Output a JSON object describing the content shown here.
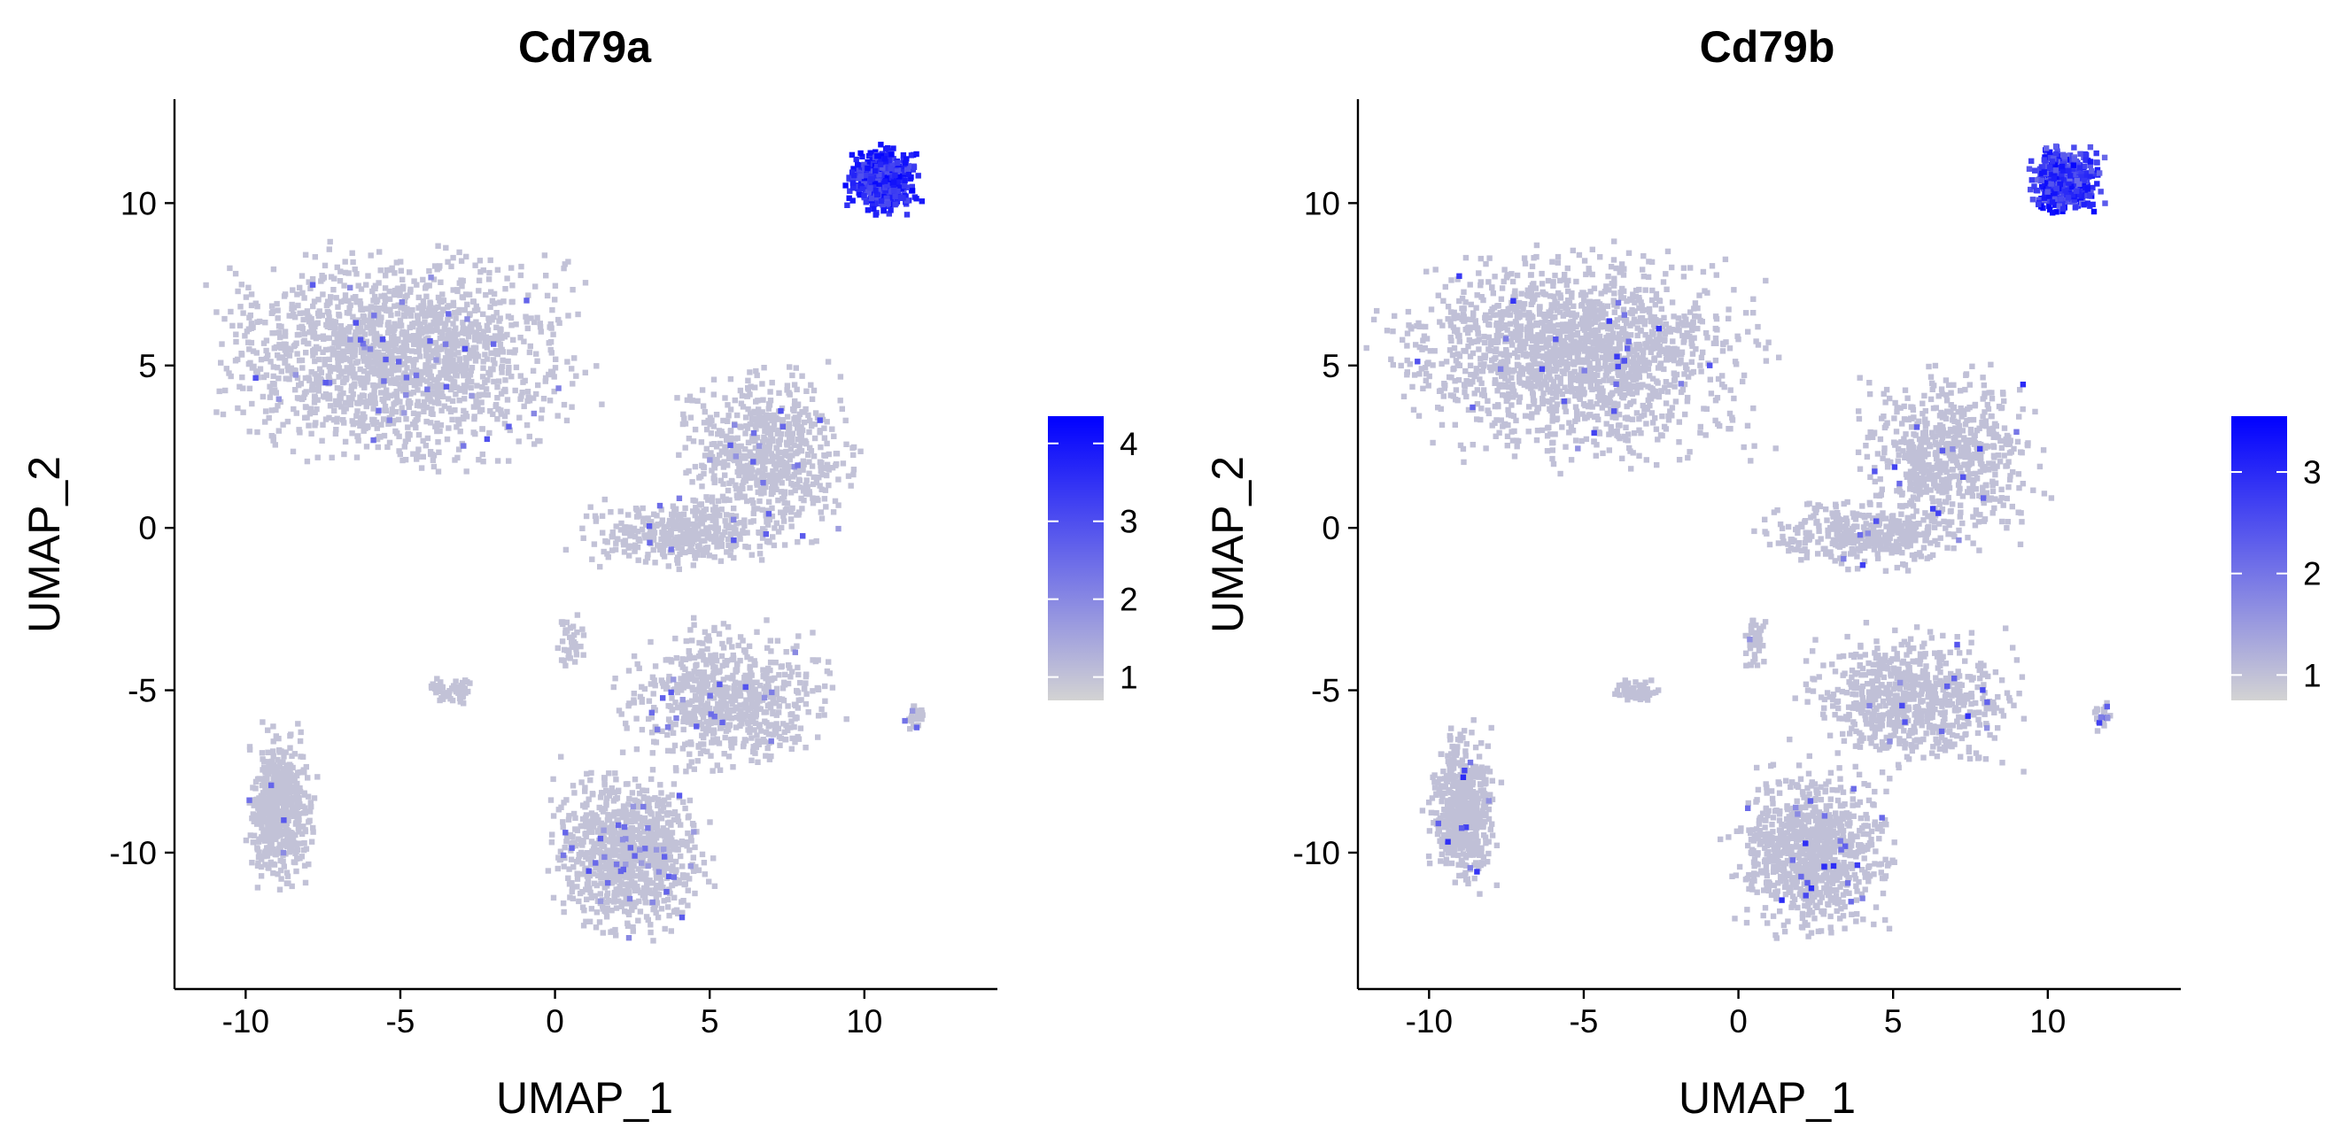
{
  "chart_data": [
    {
      "type": "scatter",
      "title": "Cd79a",
      "xlabel": "UMAP_1",
      "ylabel": "UMAP_2",
      "xlim": [
        -12.3,
        14.3
      ],
      "ylim": [
        -14.2,
        13.2
      ],
      "xticks": [
        -10,
        -5,
        0,
        5,
        10
      ],
      "yticks": [
        -10,
        -5,
        0,
        5,
        10
      ],
      "grid": false,
      "legend": {
        "placement": "right",
        "min": 0.7,
        "max": 4.35,
        "ticks": [
          1,
          2,
          3,
          4
        ],
        "low_color": "#d3d3d3",
        "high_color": "#0000ff"
      },
      "clusters": [
        {
          "label": "top-left island",
          "x": -5.2,
          "y": 5.3,
          "sx": 3.4,
          "sy": 1.9,
          "n": 1700,
          "value": 1.0,
          "shape": "blob",
          "hot_fraction": 0.025
        },
        {
          "label": "center-right island upper",
          "x": 6.8,
          "y": 2.2,
          "sx": 1.7,
          "sy": 1.6,
          "n": 650,
          "value": 1.0,
          "shape": "blob",
          "hot_fraction": 0.03
        },
        {
          "label": "center-right island lower",
          "x": 4.0,
          "y": -0.2,
          "sx": 2.0,
          "sy": 0.6,
          "n": 350,
          "value": 1.0,
          "shape": "blob",
          "hot_fraction": 0.02
        },
        {
          "label": "bottom-center island upper",
          "x": 5.6,
          "y": -5.3,
          "sx": 2.0,
          "sy": 1.3,
          "n": 700,
          "value": 1.0,
          "shape": "blob",
          "hot_fraction": 0.03
        },
        {
          "label": "bottom-center island lower",
          "x": 2.4,
          "y": -10.0,
          "sx": 1.5,
          "sy": 1.5,
          "n": 900,
          "value": 1.0,
          "shape": "blob",
          "hot_fraction": 0.04
        },
        {
          "label": "bottom-left island",
          "x": -8.9,
          "y": -8.6,
          "sx": 0.65,
          "sy": 1.4,
          "n": 550,
          "value": 1.0,
          "shape": "blob",
          "hot_fraction": 0.01
        },
        {
          "label": "small center island",
          "x": -3.3,
          "y": -5.0,
          "sx": 0.45,
          "sy": 0.22,
          "n": 60,
          "value": 1.0,
          "shape": "blob",
          "hot_fraction": 0.0
        },
        {
          "label": "small upper-middle island",
          "x": 0.5,
          "y": -3.5,
          "sx": 0.25,
          "sy": 0.6,
          "n": 40,
          "value": 1.0,
          "shape": "blob",
          "hot_fraction": 0.0
        },
        {
          "label": "small right streak",
          "x": 11.7,
          "y": -5.8,
          "sx": 0.3,
          "sy": 0.25,
          "n": 25,
          "value": 1.0,
          "shape": "blob",
          "hot_fraction": 0.2
        },
        {
          "label": "B cell cluster",
          "x": 10.6,
          "y": 10.7,
          "sx": 0.65,
          "sy": 0.6,
          "n": 520,
          "value": 3.6,
          "shape": "blob",
          "hot_fraction": 1.0
        }
      ]
    },
    {
      "type": "scatter",
      "title": "Cd79b",
      "xlabel": "UMAP_1",
      "ylabel": "UMAP_2",
      "xlim": [
        -12.3,
        14.3
      ],
      "ylim": [
        -14.2,
        13.2
      ],
      "xticks": [
        -10,
        -5,
        0,
        5,
        10
      ],
      "yticks": [
        -10,
        -5,
        0,
        5,
        10
      ],
      "grid": false,
      "legend": {
        "placement": "right",
        "min": 0.75,
        "max": 3.55,
        "ticks": [
          1,
          2,
          3
        ],
        "low_color": "#d3d3d3",
        "high_color": "#0000ff"
      },
      "clusters": [
        {
          "label": "top-left island",
          "x": -5.2,
          "y": 5.3,
          "sx": 3.4,
          "sy": 1.9,
          "n": 1700,
          "value": 1.0,
          "shape": "blob",
          "hot_fraction": 0.02
        },
        {
          "label": "center-right island upper",
          "x": 6.8,
          "y": 2.2,
          "sx": 1.7,
          "sy": 1.6,
          "n": 650,
          "value": 1.0,
          "shape": "blob",
          "hot_fraction": 0.025
        },
        {
          "label": "center-right island lower",
          "x": 4.0,
          "y": -0.2,
          "sx": 2.0,
          "sy": 0.6,
          "n": 350,
          "value": 1.0,
          "shape": "blob",
          "hot_fraction": 0.015
        },
        {
          "label": "bottom-center island upper",
          "x": 5.6,
          "y": -5.3,
          "sx": 2.0,
          "sy": 1.3,
          "n": 700,
          "value": 1.0,
          "shape": "blob",
          "hot_fraction": 0.025
        },
        {
          "label": "bottom-center island lower",
          "x": 2.4,
          "y": -10.0,
          "sx": 1.5,
          "sy": 1.5,
          "n": 900,
          "value": 1.0,
          "shape": "blob",
          "hot_fraction": 0.035
        },
        {
          "label": "bottom-left island",
          "x": -8.9,
          "y": -8.6,
          "sx": 0.65,
          "sy": 1.4,
          "n": 550,
          "value": 1.0,
          "shape": "blob",
          "hot_fraction": 0.015
        },
        {
          "label": "small center island",
          "x": -3.3,
          "y": -5.0,
          "sx": 0.45,
          "sy": 0.22,
          "n": 60,
          "value": 1.0,
          "shape": "blob",
          "hot_fraction": 0.0
        },
        {
          "label": "small upper-middle island",
          "x": 0.5,
          "y": -3.5,
          "sx": 0.25,
          "sy": 0.6,
          "n": 40,
          "value": 1.0,
          "shape": "blob",
          "hot_fraction": 0.05
        },
        {
          "label": "small right streak",
          "x": 11.7,
          "y": -5.8,
          "sx": 0.3,
          "sy": 0.25,
          "n": 25,
          "value": 1.0,
          "shape": "blob",
          "hot_fraction": 0.15
        },
        {
          "label": "B cell cluster",
          "x": 10.6,
          "y": 10.7,
          "sx": 0.65,
          "sy": 0.6,
          "n": 520,
          "value": 2.8,
          "shape": "blob",
          "hot_fraction": 1.0
        }
      ]
    }
  ]
}
